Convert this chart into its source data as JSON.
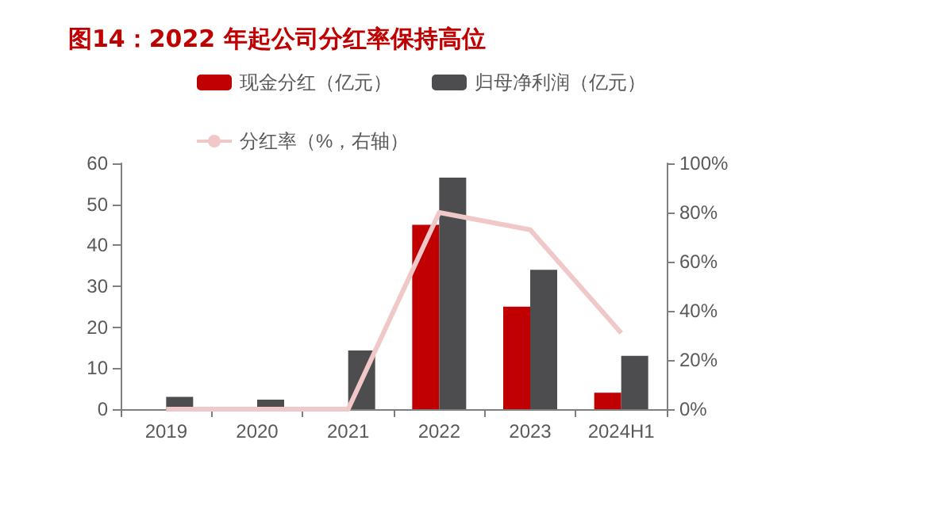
{
  "chart_data": {
    "type": "bar",
    "title": "图14：2022 年起公司分红率保持高位",
    "categories": [
      "2019",
      "2020",
      "2021",
      "2022",
      "2023",
      "2024H1"
    ],
    "series": [
      {
        "name": "现金分红（亿元）",
        "color": "#c00000",
        "values": [
          0,
          0,
          0,
          45,
          25,
          4
        ]
      },
      {
        "name": "归母净利润（亿元）",
        "color": "#4d4d4f",
        "values": [
          3,
          2.3,
          14.3,
          56.5,
          34,
          13
        ]
      },
      {
        "name": "分红率（%，右轴）",
        "type": "line",
        "axis": "y2",
        "color": "#f0c8c8",
        "values": [
          0,
          0,
          0,
          80,
          73,
          31
        ]
      }
    ],
    "ylim": [
      0,
      60
    ],
    "yticks": [
      0,
      10,
      20,
      30,
      40,
      50,
      60
    ],
    "y2lim": [
      0,
      100
    ],
    "y2ticks": [
      {
        "value": 0,
        "label": "0%"
      },
      {
        "value": 20,
        "label": "20%"
      },
      {
        "value": 40,
        "label": "40%"
      },
      {
        "value": 60,
        "label": "60%"
      },
      {
        "value": 80,
        "label": "80%"
      },
      {
        "value": 100,
        "label": "100%"
      }
    ],
    "grid": false,
    "legend": "top",
    "marker": "none"
  }
}
